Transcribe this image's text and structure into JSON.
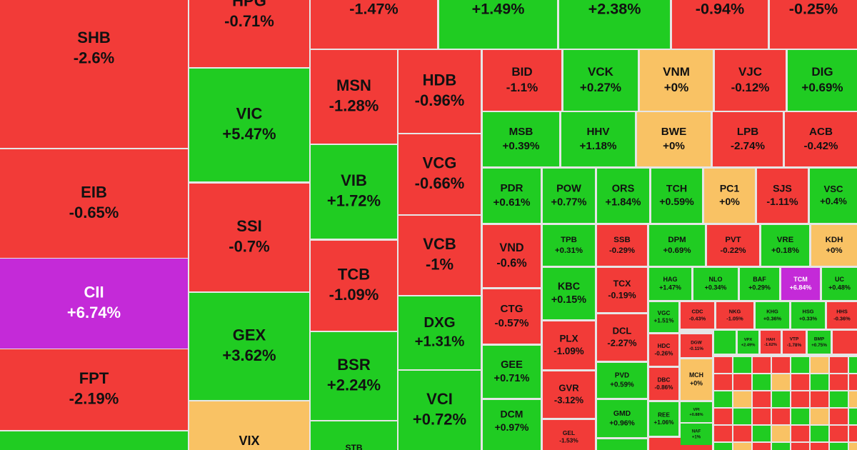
{
  "tiles": [
    {
      "ticker": "SHB",
      "change": "-2.6%",
      "color": "#f23b38"
    },
    {
      "ticker": "EIB",
      "change": "-0.65%",
      "color": "#f23b38"
    },
    {
      "ticker": "CII",
      "change": "+6.74%",
      "color": "#c42ad8"
    },
    {
      "ticker": "FPT",
      "change": "-2.19%",
      "color": "#f23b38"
    },
    {
      "color": "#20cc22"
    },
    {
      "ticker": "HPG",
      "change": "-0.71%",
      "color": "#f23b38"
    },
    {
      "ticker": "VIC",
      "change": "+5.47%",
      "color": "#20cc22"
    },
    {
      "ticker": "SSI",
      "change": "-0.7%",
      "color": "#f23b38"
    },
    {
      "ticker": "GEX",
      "change": "+3.62%",
      "color": "#20cc22"
    },
    {
      "ticker": "VIX",
      "color": "#f9c264"
    },
    {
      "change": "-1.47%",
      "color": "#f23b38"
    },
    {
      "change": "+1.49%",
      "color": "#20cc22"
    },
    {
      "change": "+2.38%",
      "color": "#20cc22"
    },
    {
      "change": "-0.94%",
      "color": "#f23b38"
    },
    {
      "change": "-0.25%",
      "color": "#f23b38"
    },
    {
      "ticker": "MSN",
      "change": "-1.28%",
      "color": "#f23b38"
    },
    {
      "ticker": "VIB",
      "change": "+1.72%",
      "color": "#20cc22"
    },
    {
      "ticker": "TCB",
      "change": "-1.09%",
      "color": "#f23b38"
    },
    {
      "ticker": "BSR",
      "change": "+2.24%",
      "color": "#20cc22"
    },
    {
      "ticker": "STB",
      "color": "#20cc22"
    },
    {
      "ticker": "HDB",
      "change": "-0.96%",
      "color": "#f23b38"
    },
    {
      "ticker": "VCG",
      "change": "-0.66%",
      "color": "#f23b38"
    },
    {
      "ticker": "VCB",
      "change": "-1%",
      "color": "#f23b38"
    },
    {
      "ticker": "DXG",
      "change": "+1.31%",
      "color": "#20cc22"
    },
    {
      "ticker": "VCI",
      "change": "+0.72%",
      "color": "#20cc22"
    },
    {
      "ticker": "BID",
      "change": "-1.1%",
      "color": "#f23b38"
    },
    {
      "ticker": "VCK",
      "change": "+0.27%",
      "color": "#20cc22"
    },
    {
      "ticker": "VNM",
      "change": "+0%",
      "color": "#f9c264"
    },
    {
      "ticker": "VJC",
      "change": "-0.12%",
      "color": "#f23b38"
    },
    {
      "ticker": "DIG",
      "change": "+0.69%",
      "color": "#20cc22"
    },
    {
      "ticker": "MSB",
      "change": "+0.39%",
      "color": "#20cc22"
    },
    {
      "ticker": "HHV",
      "change": "+1.18%",
      "color": "#20cc22"
    },
    {
      "ticker": "BWE",
      "change": "+0%",
      "color": "#f9c264"
    },
    {
      "ticker": "LPB",
      "change": "-2.74%",
      "color": "#f23b38"
    },
    {
      "ticker": "ACB",
      "change": "-0.42%",
      "color": "#f23b38"
    },
    {
      "ticker": "PDR",
      "change": "+0.61%",
      "color": "#20cc22"
    },
    {
      "ticker": "POW",
      "change": "+0.77%",
      "color": "#20cc22"
    },
    {
      "ticker": "ORS",
      "change": "+1.84%",
      "color": "#20cc22"
    },
    {
      "ticker": "TCH",
      "change": "+0.59%",
      "color": "#20cc22"
    },
    {
      "ticker": "PC1",
      "change": "+0%",
      "color": "#f9c264"
    },
    {
      "ticker": "SJS",
      "change": "-1.11%",
      "color": "#f23b38"
    },
    {
      "ticker": "VSC",
      "change": "+0.4%",
      "color": "#20cc22"
    },
    {
      "ticker": "VND",
      "change": "-0.6%",
      "color": "#f23b38"
    },
    {
      "ticker": "CTG",
      "change": "-0.57%",
      "color": "#f23b38"
    },
    {
      "ticker": "GEE",
      "change": "+0.71%",
      "color": "#20cc22"
    },
    {
      "ticker": "DCM",
      "change": "+0.97%",
      "color": "#20cc22"
    },
    {
      "ticker": "TPB",
      "change": "+0.31%",
      "color": "#20cc22"
    },
    {
      "ticker": "KBC",
      "change": "+0.15%",
      "color": "#20cc22"
    },
    {
      "ticker": "PLX",
      "change": "-1.09%",
      "color": "#f23b38"
    },
    {
      "ticker": "GVR",
      "change": "-3.12%",
      "color": "#f23b38"
    },
    {
      "ticker": "GEL",
      "change": "-1.53%",
      "color": "#f23b38"
    },
    {
      "ticker": "SSB",
      "change": "-0.29%",
      "color": "#f23b38"
    },
    {
      "ticker": "TCX",
      "change": "-0.19%",
      "color": "#f23b38"
    },
    {
      "ticker": "DCL",
      "change": "-2.27%",
      "color": "#f23b38"
    },
    {
      "ticker": "PVD",
      "change": "+0.59%",
      "color": "#20cc22"
    },
    {
      "ticker": "GMD",
      "change": "+0.96%",
      "color": "#20cc22"
    },
    {
      "ticker": "DPM",
      "change": "+0.69%",
      "color": "#20cc22"
    },
    {
      "ticker": "PVT",
      "change": "-0.22%",
      "color": "#f23b38"
    },
    {
      "ticker": "VRE",
      "change": "+0.18%",
      "color": "#20cc22"
    },
    {
      "ticker": "KDH",
      "change": "+0%",
      "color": "#f9c264"
    },
    {
      "ticker": "HAG",
      "change": "+1.47%",
      "color": "#20cc22"
    },
    {
      "ticker": "NLO",
      "change": "+0.34%",
      "color": "#20cc22"
    },
    {
      "ticker": "BAF",
      "change": "+0.29%",
      "color": "#20cc22"
    },
    {
      "ticker": "TCM",
      "change": "+6.84%",
      "color": "#c42ad8"
    },
    {
      "ticker": "UC",
      "change": "+0.48%",
      "color": "#20cc22"
    },
    {
      "ticker": "VGC",
      "change": "+1.51%",
      "color": "#20cc22"
    },
    {
      "ticker": "CDC",
      "change": "-0.43%",
      "color": "#f23b38"
    },
    {
      "ticker": "NKG",
      "change": "-1.05%",
      "color": "#f23b38"
    },
    {
      "ticker": "KHG",
      "change": "+0.36%",
      "color": "#20cc22"
    },
    {
      "ticker": "HSG",
      "change": "+0.33%",
      "color": "#20cc22"
    },
    {
      "ticker": "HHS",
      "change": "-0.36%",
      "color": "#f23b38"
    },
    {
      "ticker": "HDC",
      "change": "-0.26%",
      "color": "#f23b38"
    },
    {
      "ticker": "DGW",
      "change": "-0.11%",
      "color": "#f23b38"
    },
    {
      "ticker": "VPX",
      "change": "+2.49%",
      "color": "#20cc22"
    },
    {
      "ticker": "HAH",
      "change": "-1.62%",
      "color": "#f23b38"
    },
    {
      "ticker": "VTP",
      "change": "-1.78%",
      "color": "#f23b38"
    },
    {
      "ticker": "BMP",
      "change": "+0.75%",
      "color": "#20cc22"
    },
    {
      "ticker": "DBC",
      "change": "-0.86%",
      "color": "#f23b38"
    },
    {
      "ticker": "MCH",
      "change": "+0%",
      "color": "#f9c264"
    },
    {
      "ticker": "REE",
      "change": "+1.06%",
      "color": "#20cc22"
    },
    {
      "ticker": "VPI",
      "change": "+0.88%",
      "color": "#20cc22"
    },
    {
      "ticker": "NAF",
      "change": "+1%",
      "color": "#20cc22"
    }
  ]
}
